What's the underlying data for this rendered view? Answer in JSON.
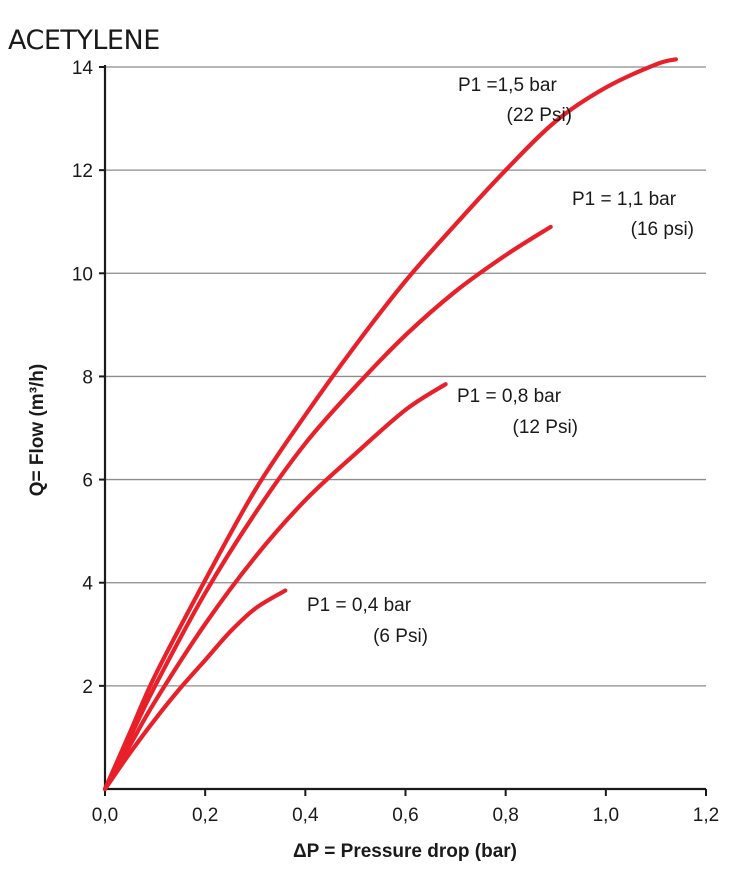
{
  "chart_data": {
    "type": "line",
    "title": "ACETYLENE",
    "xlabel": "ΔP = Pressure drop (bar)",
    "ylabel": "Q= Flow (m³/h)",
    "xlim": [
      0,
      1.2
    ],
    "ylim": [
      0,
      14
    ],
    "x_ticks": [
      "0,0",
      "0,2",
      "0,4",
      "0,6",
      "0,8",
      "1,0",
      "1,2"
    ],
    "x_tick_values": [
      0,
      0.2,
      0.4,
      0.6,
      0.8,
      1.0,
      1.2
    ],
    "y_ticks": [
      "2",
      "4",
      "6",
      "8",
      "10",
      "12",
      "14"
    ],
    "y_tick_values": [
      2,
      4,
      6,
      8,
      10,
      12,
      14
    ],
    "grid": "horizontal",
    "line_color": "#e8202a",
    "series": [
      {
        "label_line1": "P1 =1,5 bar",
        "label_line2": "(22 Psi)",
        "x": [
          0,
          0.05,
          0.1,
          0.2,
          0.3,
          0.4,
          0.5,
          0.6,
          0.7,
          0.8,
          0.9,
          1.0,
          1.1,
          1.14
        ],
        "values": [
          0,
          1.1,
          2.2,
          4.05,
          5.8,
          7.25,
          8.6,
          9.85,
          10.95,
          12.0,
          12.95,
          13.6,
          14.05,
          14.15
        ]
      },
      {
        "label_line1": "P1 = 1,1 bar",
        "label_line2": "(16 psi)",
        "x": [
          0,
          0.05,
          0.1,
          0.2,
          0.3,
          0.4,
          0.5,
          0.6,
          0.7,
          0.8,
          0.89
        ],
        "values": [
          0,
          1.0,
          2.0,
          3.8,
          5.35,
          6.7,
          7.8,
          8.8,
          9.65,
          10.35,
          10.9
        ]
      },
      {
        "label_line1": "P1 = 0,8 bar",
        "label_line2": "(12 Psi)",
        "x": [
          0,
          0.05,
          0.1,
          0.2,
          0.3,
          0.4,
          0.5,
          0.6,
          0.68
        ],
        "values": [
          0,
          0.85,
          1.7,
          3.2,
          4.5,
          5.6,
          6.5,
          7.35,
          7.85
        ]
      },
      {
        "label_line1": "P1 = 0,4 bar",
        "label_line2": "(6 Psi)",
        "x": [
          0,
          0.05,
          0.1,
          0.15,
          0.2,
          0.25,
          0.3,
          0.36
        ],
        "values": [
          0,
          0.7,
          1.35,
          1.95,
          2.5,
          3.05,
          3.5,
          3.85
        ]
      }
    ]
  }
}
